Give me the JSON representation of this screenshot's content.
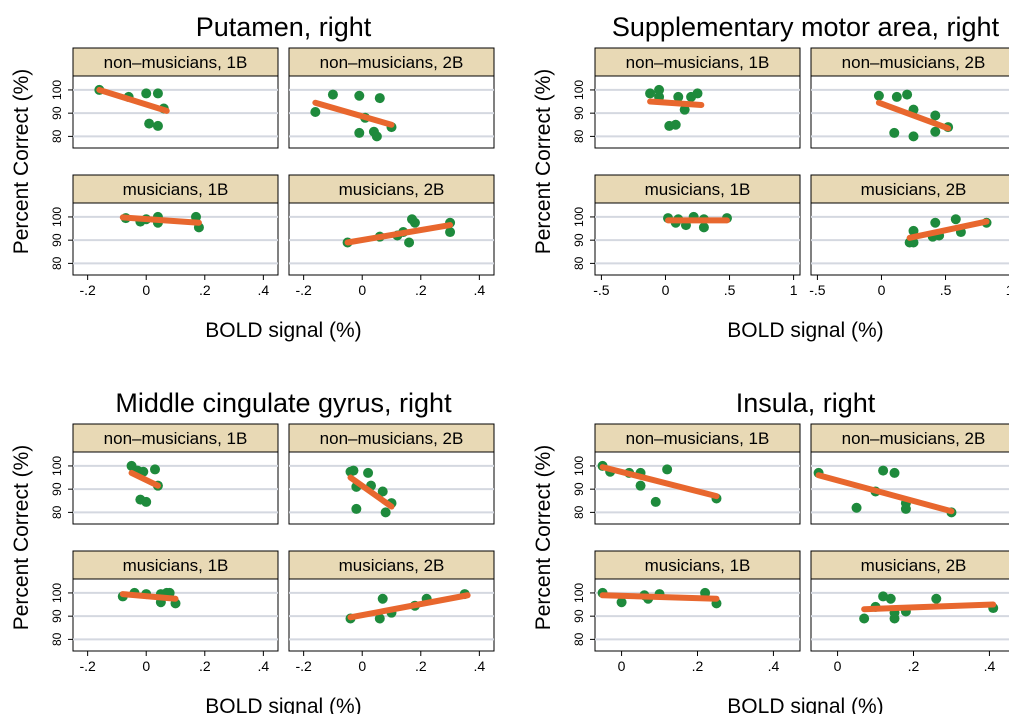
{
  "colors": {
    "point": "#1e8a3c",
    "fit_line": "#e8672e",
    "strip_bg": "#e8d9b5",
    "grid": "#d4d8e0"
  },
  "chart_data": [
    {
      "type": "scatter",
      "title": "Putamen, right",
      "xlabel": "BOLD signal (%)",
      "ylabel": "Percent Correct (%)",
      "xlim": [
        -0.25,
        0.45
      ],
      "ylim": [
        75,
        106
      ],
      "xticks": [
        -0.2,
        0,
        0.2,
        0.4
      ],
      "xtick_labels": [
        "-.2",
        "0",
        ".2",
        ".4"
      ],
      "yticks": [
        80,
        90,
        100
      ],
      "ytick_labels": [
        "80",
        "90",
        "100"
      ],
      "panels": [
        {
          "strip": "non–musicians, 1B",
          "points": [
            [
              -0.16,
              100
            ],
            [
              -0.06,
              97
            ],
            [
              0.0,
              98.5
            ],
            [
              0.04,
              98.5
            ],
            [
              0.06,
              92
            ],
            [
              0.01,
              85.5
            ],
            [
              0.04,
              84.5
            ]
          ],
          "fit": [
            [
              -0.16,
              100
            ],
            [
              0.07,
              91
            ]
          ]
        },
        {
          "strip": "non–musicians, 2B",
          "points": [
            [
              -0.16,
              90.5
            ],
            [
              -0.1,
              98
            ],
            [
              -0.01,
              97.5
            ],
            [
              0.06,
              96.5
            ],
            [
              -0.01,
              81.5
            ],
            [
              0.04,
              82
            ],
            [
              0.05,
              80
            ],
            [
              0.1,
              84
            ],
            [
              0.01,
              88
            ]
          ],
          "fit": [
            [
              -0.16,
              94.5
            ],
            [
              0.1,
              85
            ]
          ]
        },
        {
          "strip": "musicians, 1B",
          "points": [
            [
              -0.07,
              99.5
            ],
            [
              -0.02,
              98
            ],
            [
              0.0,
              99
            ],
            [
              0.04,
              100
            ],
            [
              0.04,
              97.5
            ],
            [
              0.17,
              100
            ],
            [
              0.18,
              95.5
            ]
          ],
          "fit": [
            [
              -0.08,
              99.8
            ],
            [
              0.18,
              97.5
            ]
          ]
        },
        {
          "strip": "musicians, 2B",
          "points": [
            [
              -0.05,
              89
            ],
            [
              0.06,
              91.5
            ],
            [
              0.12,
              92
            ],
            [
              0.14,
              93.5
            ],
            [
              0.17,
              99
            ],
            [
              0.18,
              97.5
            ],
            [
              0.16,
              89
            ],
            [
              0.3,
              97.5
            ],
            [
              0.3,
              93.5
            ]
          ],
          "fit": [
            [
              -0.05,
              89
            ],
            [
              0.3,
              96.5
            ]
          ]
        }
      ]
    },
    {
      "type": "scatter",
      "title": "Supplementary motor area, right",
      "xlabel": "BOLD signal (%)",
      "ylabel": "Percent Correct (%)",
      "xlim": [
        -0.55,
        1.05
      ],
      "ylim": [
        75,
        106
      ],
      "xticks": [
        -0.5,
        0,
        0.5,
        1
      ],
      "xtick_labels": [
        "-.5",
        "0",
        ".5",
        "1"
      ],
      "yticks": [
        80,
        90,
        100
      ],
      "ytick_labels": [
        "80",
        "90",
        "100"
      ],
      "panels": [
        {
          "strip": "non–musicians, 1B",
          "points": [
            [
              -0.12,
              98.5
            ],
            [
              -0.05,
              100
            ],
            [
              -0.05,
              97
            ],
            [
              0.1,
              97
            ],
            [
              0.2,
              97
            ],
            [
              0.25,
              98.5
            ],
            [
              0.15,
              91.5
            ],
            [
              0.08,
              85
            ],
            [
              0.03,
              84.5
            ]
          ],
          "fit": [
            [
              -0.12,
              95
            ],
            [
              0.28,
              93.5
            ]
          ]
        },
        {
          "strip": "non–musicians, 2B",
          "points": [
            [
              -0.02,
              97.5
            ],
            [
              0.12,
              97
            ],
            [
              0.2,
              98
            ],
            [
              0.25,
              91.5
            ],
            [
              0.42,
              89
            ],
            [
              0.1,
              81.5
            ],
            [
              0.25,
              80
            ],
            [
              0.42,
              82
            ],
            [
              0.52,
              84
            ]
          ],
          "fit": [
            [
              -0.02,
              94.5
            ],
            [
              0.52,
              83.5
            ]
          ]
        },
        {
          "strip": "musicians, 1B",
          "points": [
            [
              0.02,
              99.5
            ],
            [
              0.1,
              99
            ],
            [
              0.08,
              97.5
            ],
            [
              0.16,
              96.5
            ],
            [
              0.22,
              100
            ],
            [
              0.3,
              95.5
            ],
            [
              0.3,
              99
            ],
            [
              0.48,
              99.5
            ]
          ],
          "fit": [
            [
              0.02,
              98.5
            ],
            [
              0.48,
              98.5
            ]
          ]
        },
        {
          "strip": "musicians, 2B",
          "points": [
            [
              0.22,
              89
            ],
            [
              0.25,
              89
            ],
            [
              0.25,
              94
            ],
            [
              0.4,
              91.5
            ],
            [
              0.45,
              92
            ],
            [
              0.42,
              97.5
            ],
            [
              0.58,
              99
            ],
            [
              0.62,
              93.5
            ],
            [
              0.82,
              97.5
            ]
          ],
          "fit": [
            [
              0.22,
              91
            ],
            [
              0.82,
              98
            ]
          ]
        }
      ]
    },
    {
      "type": "scatter",
      "title": "Middle cingulate gyrus, right",
      "xlabel": "BOLD signal (%)",
      "ylabel": "Percent Correct (%)",
      "xlim": [
        -0.25,
        0.45
      ],
      "ylim": [
        75,
        106
      ],
      "xticks": [
        -0.2,
        0,
        0.2,
        0.4
      ],
      "xtick_labels": [
        "-.2",
        "0",
        ".2",
        ".4"
      ],
      "yticks": [
        80,
        90,
        100
      ],
      "ytick_labels": [
        "80",
        "90",
        "100"
      ],
      "panels": [
        {
          "strip": "non–musicians, 1B",
          "points": [
            [
              -0.05,
              100
            ],
            [
              -0.03,
              98
            ],
            [
              0.03,
              98.5
            ],
            [
              -0.01,
              97.5
            ],
            [
              -0.02,
              85.5
            ],
            [
              0.0,
              84.5
            ],
            [
              0.04,
              91.5
            ]
          ],
          "fit": [
            [
              -0.05,
              97
            ],
            [
              0.04,
              91.5
            ]
          ]
        },
        {
          "strip": "non–musicians, 2B",
          "points": [
            [
              -0.04,
              97.5
            ],
            [
              -0.03,
              98
            ],
            [
              0.02,
              97
            ],
            [
              -0.02,
              91
            ],
            [
              0.03,
              91.5
            ],
            [
              0.07,
              89
            ],
            [
              0.1,
              84
            ],
            [
              -0.02,
              81.5
            ],
            [
              0.08,
              80
            ]
          ],
          "fit": [
            [
              -0.04,
              95
            ],
            [
              0.1,
              82.5
            ]
          ]
        },
        {
          "strip": "musicians, 1B",
          "points": [
            [
              -0.08,
              98.5
            ],
            [
              -0.04,
              100
            ],
            [
              0.0,
              99.5
            ],
            [
              0.05,
              99.5
            ],
            [
              0.07,
              100
            ],
            [
              0.08,
              100
            ],
            [
              0.05,
              96
            ],
            [
              0.1,
              95.5
            ]
          ],
          "fit": [
            [
              -0.08,
              99.5
            ],
            [
              0.1,
              97.5
            ]
          ]
        },
        {
          "strip": "musicians, 2B",
          "points": [
            [
              -0.04,
              89
            ],
            [
              0.06,
              89
            ],
            [
              0.07,
              97.5
            ],
            [
              0.1,
              91.5
            ],
            [
              0.18,
              94.5
            ],
            [
              0.22,
              97.5
            ],
            [
              0.35,
              99.5
            ]
          ],
          "fit": [
            [
              -0.04,
              89.5
            ],
            [
              0.36,
              99
            ]
          ]
        }
      ]
    },
    {
      "type": "scatter",
      "title": "Insula, right",
      "xlabel": "BOLD signal (%)",
      "ylabel": "Percent Correct (%)",
      "xlim": [
        -0.07,
        0.47
      ],
      "ylim": [
        75,
        106
      ],
      "xticks": [
        0,
        0.2,
        0.4
      ],
      "xtick_labels": [
        "0",
        ".2",
        ".4"
      ],
      "yticks": [
        80,
        90,
        100
      ],
      "ytick_labels": [
        "80",
        "90",
        "100"
      ],
      "panels": [
        {
          "strip": "non–musicians, 1B",
          "points": [
            [
              -0.05,
              100
            ],
            [
              -0.03,
              97.5
            ],
            [
              0.02,
              97
            ],
            [
              0.05,
              97
            ],
            [
              0.05,
              91.5
            ],
            [
              0.09,
              84.5
            ],
            [
              0.12,
              98.5
            ],
            [
              0.25,
              86
            ]
          ],
          "fit": [
            [
              -0.05,
              99.5
            ],
            [
              0.25,
              87
            ]
          ]
        },
        {
          "strip": "non–musicians, 2B",
          "points": [
            [
              -0.05,
              97
            ],
            [
              0.05,
              82
            ],
            [
              0.1,
              89
            ],
            [
              0.12,
              98
            ],
            [
              0.15,
              97
            ],
            [
              0.18,
              84
            ],
            [
              0.18,
              81.5
            ],
            [
              0.3,
              80
            ]
          ],
          "fit": [
            [
              -0.05,
              96
            ],
            [
              0.3,
              80.5
            ]
          ]
        },
        {
          "strip": "musicians, 1B",
          "points": [
            [
              -0.05,
              100
            ],
            [
              0.0,
              96
            ],
            [
              0.06,
              99
            ],
            [
              0.07,
              97.5
            ],
            [
              0.1,
              99.5
            ],
            [
              0.22,
              100
            ],
            [
              0.25,
              95.5
            ]
          ],
          "fit": [
            [
              -0.05,
              99
            ],
            [
              0.25,
              97.5
            ]
          ]
        },
        {
          "strip": "musicians, 2B",
          "points": [
            [
              0.07,
              89
            ],
            [
              0.1,
              94
            ],
            [
              0.12,
              98.5
            ],
            [
              0.14,
              97.5
            ],
            [
              0.15,
              89
            ],
            [
              0.15,
              91.5
            ],
            [
              0.18,
              92
            ],
            [
              0.26,
              97.5
            ],
            [
              0.41,
              93.5
            ]
          ],
          "fit": [
            [
              0.07,
              93
            ],
            [
              0.41,
              95
            ]
          ]
        }
      ]
    }
  ]
}
